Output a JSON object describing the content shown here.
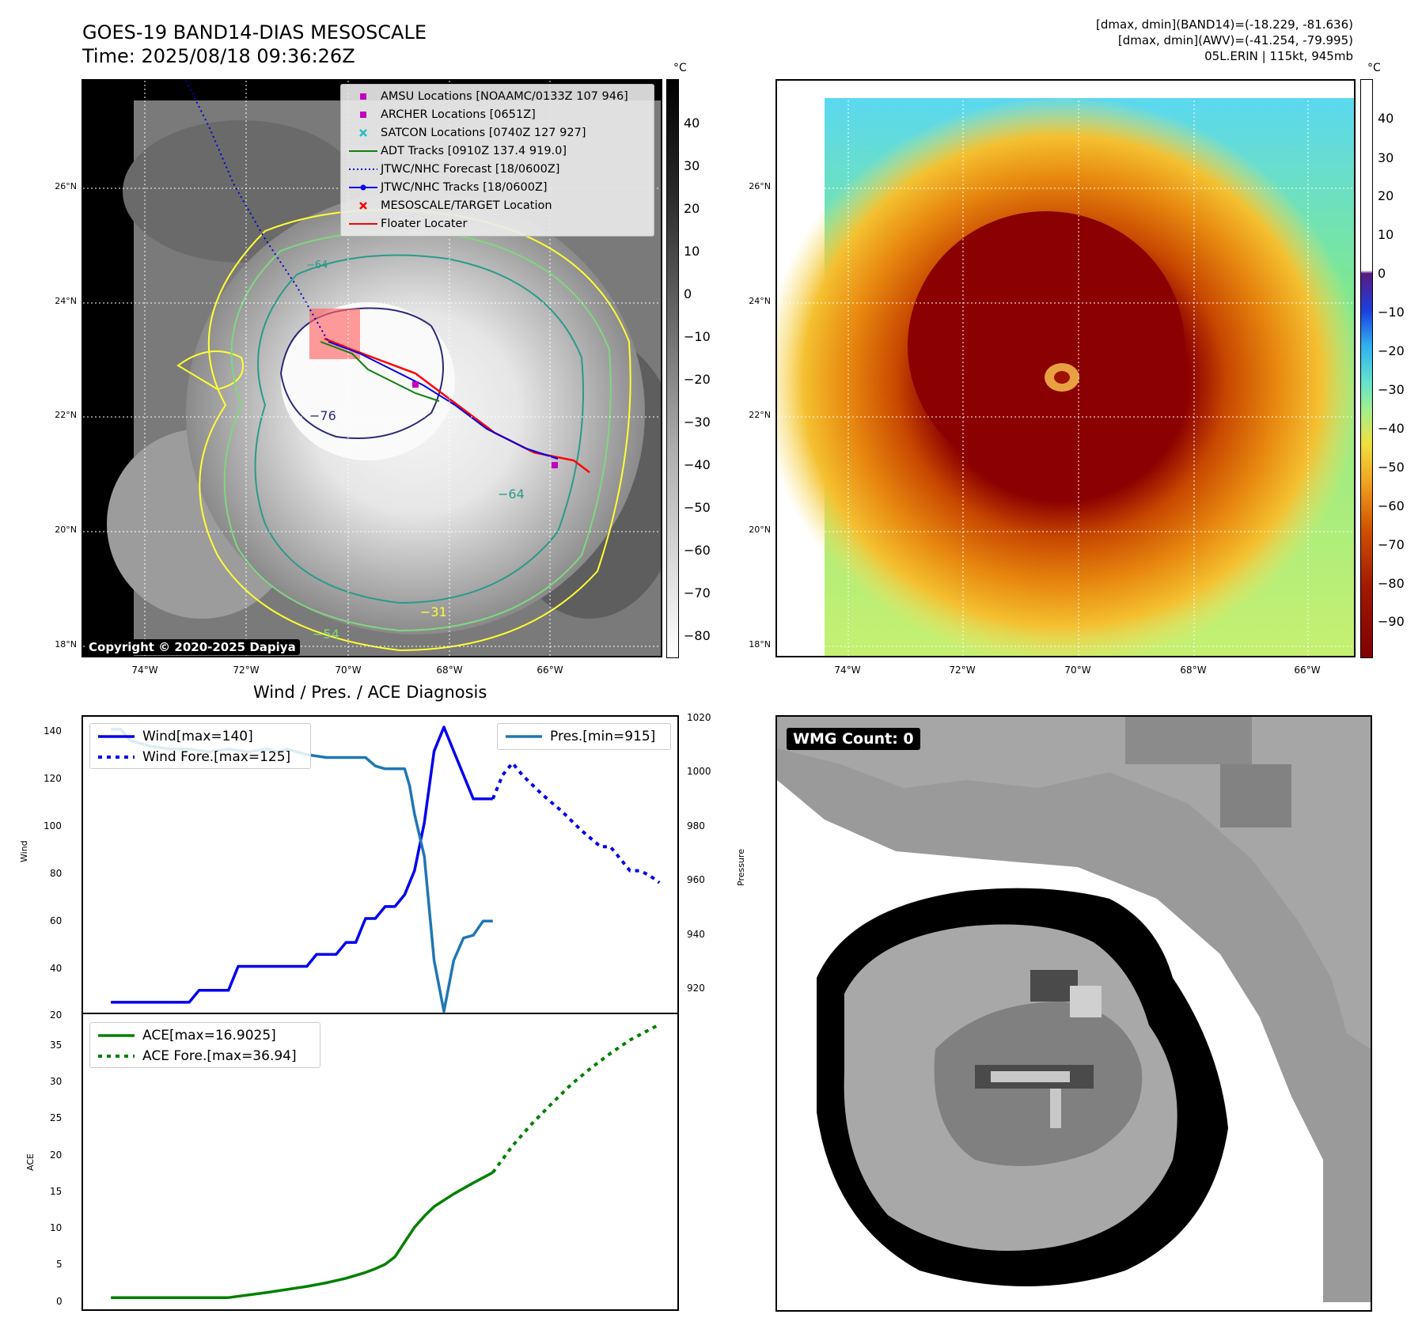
{
  "header": {
    "title_line1": "GOES-19 BAND14-DIAS MESOSCALE",
    "title_line2": "Time: 2025/08/18 09:36:26Z",
    "info_line1": "[dmax, dmin](BAND14)=(-18.229, -81.636)",
    "info_line2": "[dmax, dmin](AWV)=(-41.254, -79.995)",
    "info_line3": "05L.ERIN | 115kt, 945mb"
  },
  "map_axes": {
    "lat_labels": [
      "26°N",
      "24°N",
      "22°N",
      "20°N",
      "18°N"
    ],
    "lon_labels": [
      "74°W",
      "72°W",
      "70°W",
      "68°W",
      "66°W"
    ]
  },
  "ir_panel": {
    "copyright": "Copyright © 2020-2025 Dapiya",
    "colorbar_unit": "°C",
    "colorbar_ticks": [
      "40",
      "30",
      "20",
      "10",
      "0",
      "−10",
      "−20",
      "−30",
      "−40",
      "−50",
      "−60",
      "−70",
      "−80"
    ],
    "contour_labels": [
      "−64",
      "−76",
      "−64",
      "−31",
      "−54"
    ],
    "legend": [
      {
        "label": "AMSU Locations [NOAAMC/0133Z 107 946]",
        "color": "#c000c0",
        "marker": "square"
      },
      {
        "label": "ARCHER Locations [0651Z]",
        "color": "#c000c0",
        "marker": "square"
      },
      {
        "label": "SATCON Locations [0740Z 127 927]",
        "color": "#20c0c0",
        "marker": "x"
      },
      {
        "label": "ADT Tracks [0910Z 137.4 919.0]",
        "color": "#108010",
        "marker": "line"
      },
      {
        "label": "JTWC/NHC Forecast [18/0600Z]",
        "color": "#0000ff",
        "marker": "dotted"
      },
      {
        "label": "JTWC/NHC Tracks [18/0600Z]",
        "color": "#0000ff",
        "marker": "line-dot"
      },
      {
        "label": "MESOSCALE/TARGET Location",
        "color": "#ff0000",
        "marker": "x"
      },
      {
        "label": "Floater Locater",
        "color": "#ff0000",
        "marker": "line"
      }
    ]
  },
  "enh_panel": {
    "colorbar_unit": "°C",
    "colorbar_ticks": [
      "40",
      "30",
      "20",
      "10",
      "0",
      "−10",
      "−20",
      "−30",
      "−40",
      "−50",
      "−60",
      "−70",
      "−80",
      "−90"
    ]
  },
  "wmg_panel": {
    "badge": "WMG Count: 0"
  },
  "chart_data": [
    {
      "type": "line",
      "title": "Wind / Pres. / ACE Diagnosis",
      "xlabel": "",
      "ylabel": "Wind",
      "y2label": "Pressure",
      "ylim": [
        20,
        145
      ],
      "y2lim": [
        914,
        1020
      ],
      "yticks": [
        "140",
        "120",
        "100",
        "80",
        "60",
        "40",
        "20"
      ],
      "y2ticks": [
        "1020",
        "1000",
        "980",
        "960",
        "940",
        "920"
      ],
      "series": [
        {
          "name": "Wind[max=140]",
          "axis": "left",
          "style": "solid",
          "color": "#0000ee",
          "x": [
            0,
            8,
            9,
            12,
            13,
            16,
            17,
            20,
            21,
            23,
            24,
            25,
            26,
            27,
            28,
            29,
            30,
            31,
            31.5,
            32,
            33,
            34,
            35,
            37,
            38,
            39
          ],
          "y": [
            25,
            25,
            30,
            30,
            40,
            40,
            40,
            40,
            45,
            45,
            50,
            50,
            60,
            60,
            65,
            65,
            70,
            80,
            90,
            100,
            130,
            140,
            130,
            110,
            110,
            110
          ]
        },
        {
          "name": "Wind Fore.[max=125]",
          "axis": "left",
          "style": "dotted",
          "color": "#0000ee",
          "x": [
            39,
            40,
            41,
            42,
            44,
            46,
            48,
            50,
            51,
            52,
            53,
            54,
            55,
            56
          ],
          "y": [
            110,
            120,
            125,
            120,
            112,
            105,
            97,
            90,
            90,
            85,
            80,
            80,
            78,
            75
          ]
        },
        {
          "name": "Pres.[min=915]",
          "axis": "right",
          "style": "solid",
          "color": "#1f77b4",
          "x": [
            0,
            1,
            2,
            3,
            4,
            6,
            8,
            10,
            12,
            14,
            16,
            17,
            18,
            20,
            22,
            24,
            26,
            27,
            28,
            29,
            30,
            30.5,
            31,
            32,
            33,
            34,
            35,
            36,
            37,
            38,
            39
          ],
          "y": [
            1015,
            1015,
            1011,
            1010,
            1009,
            1008,
            1008,
            1007,
            1008,
            1007,
            1008,
            1007,
            1008,
            1006,
            1005,
            1005,
            1005,
            1002,
            1001,
            1001,
            1001,
            995,
            985,
            970,
            933,
            915,
            933,
            941,
            942,
            947,
            947
          ]
        }
      ]
    },
    {
      "type": "line",
      "title": "",
      "xlabel": "",
      "ylabel": "ACE",
      "ylim": [
        -1.8,
        38.5
      ],
      "yticks": [
        "35",
        "30",
        "25",
        "20",
        "15",
        "10",
        "5",
        "0"
      ],
      "series": [
        {
          "name": "ACE[max=16.9025]",
          "style": "solid",
          "color": "#008000",
          "x": [
            0,
            4,
            8,
            12,
            16,
            20,
            22,
            24,
            26,
            27,
            28,
            29,
            30,
            31,
            32,
            33,
            35,
            37,
            39
          ],
          "y": [
            0,
            0,
            0,
            0,
            0.7,
            1.5,
            2,
            2.6,
            3.4,
            3.9,
            4.5,
            5.5,
            7.5,
            9.5,
            11,
            12.3,
            14,
            15.5,
            16.9
          ]
        },
        {
          "name": "ACE Fore.[max=36.94]",
          "style": "dotted",
          "color": "#008000",
          "x": [
            39,
            41,
            43,
            45,
            47,
            49,
            51,
            53,
            56
          ],
          "y": [
            16.9,
            20.5,
            23.5,
            26.2,
            28.8,
            31,
            33,
            34.8,
            36.9
          ]
        }
      ]
    }
  ]
}
